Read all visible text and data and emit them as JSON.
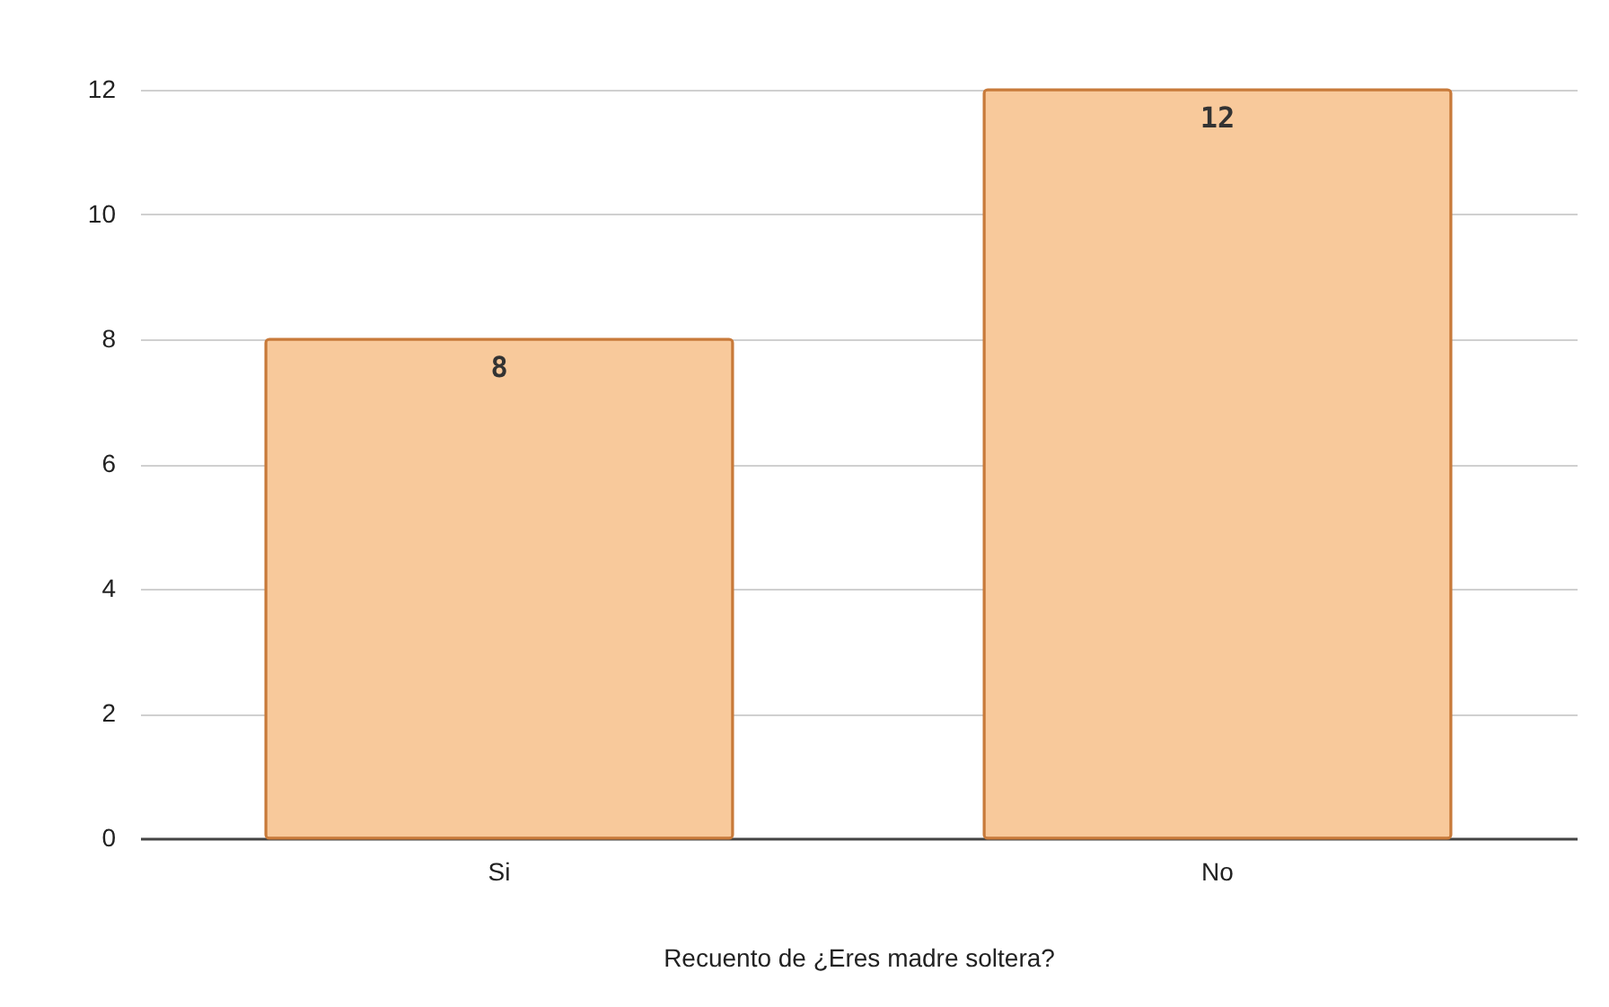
{
  "chart_data": {
    "type": "bar",
    "xlabel": "Recuento de ¿Eres madre soltera?",
    "categories": [
      "Si",
      "No"
    ],
    "values": [
      8,
      12
    ],
    "color": "#f8c99b",
    "ylim": [
      0,
      12
    ],
    "yticks": [
      0,
      2,
      4,
      6,
      8,
      10,
      12
    ],
    "grid": "y",
    "data_labels": true
  }
}
